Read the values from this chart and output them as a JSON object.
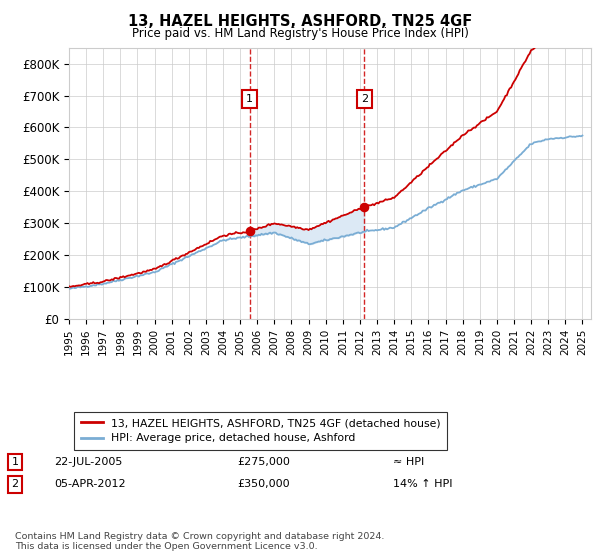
{
  "title": "13, HAZEL HEIGHTS, ASHFORD, TN25 4GF",
  "subtitle": "Price paid vs. HM Land Registry's House Price Index (HPI)",
  "property_line_color": "#cc0000",
  "hpi_line_color": "#7aadd4",
  "shaded_region_color": "#dce9f5",
  "background_color": "#ffffff",
  "grid_color": "#cccccc",
  "ylim": [
    0,
    850000
  ],
  "yticks": [
    0,
    100000,
    200000,
    300000,
    400000,
    500000,
    600000,
    700000,
    800000
  ],
  "ytick_labels": [
    "£0",
    "£100K",
    "£200K",
    "£300K",
    "£400K",
    "£500K",
    "£600K",
    "£700K",
    "£800K"
  ],
  "sale1_year": 2005.55,
  "sale1_price": 275000,
  "sale2_year": 2012.25,
  "sale2_price": 350000,
  "legend_property": "13, HAZEL HEIGHTS, ASHFORD, TN25 4GF (detached house)",
  "legend_hpi": "HPI: Average price, detached house, Ashford",
  "footer": "Contains HM Land Registry data © Crown copyright and database right 2024.\nThis data is licensed under the Open Government Licence v3.0.",
  "xlim_start": 1995,
  "xlim_end": 2025.5
}
